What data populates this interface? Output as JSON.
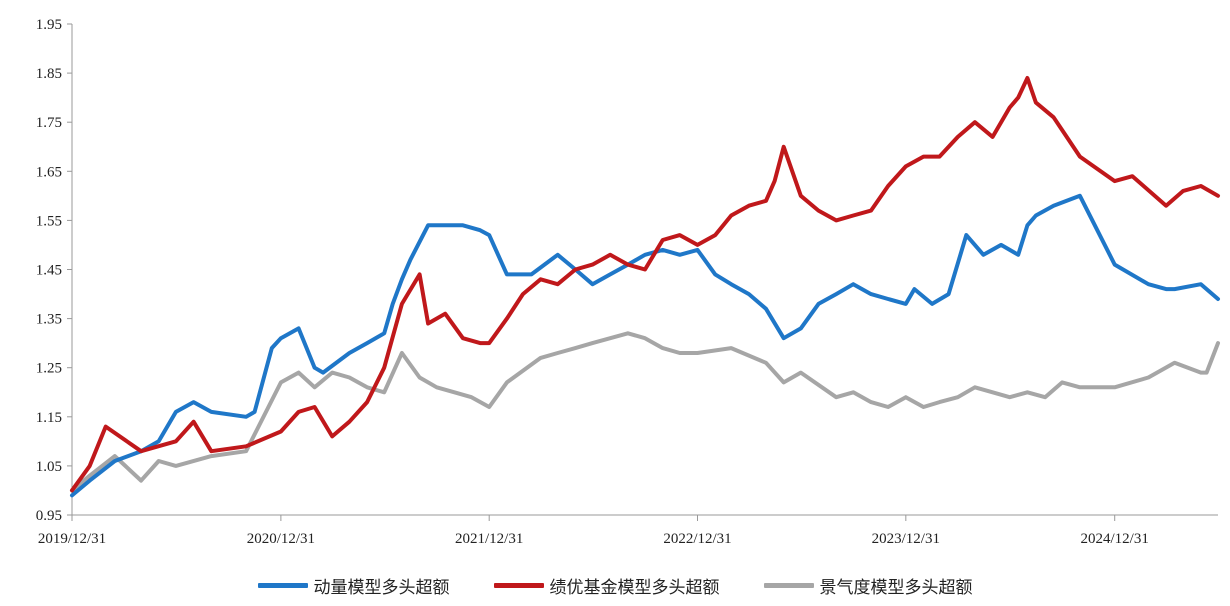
{
  "chart_data": {
    "type": "line",
    "title": "",
    "xlabel": "",
    "ylabel": "",
    "x_start": "2019/12/31",
    "x_end": "2025/06/30",
    "ylim": [
      0.95,
      1.95
    ],
    "y_ticks": [
      "0.95",
      "1.05",
      "1.15",
      "1.25",
      "1.35",
      "1.45",
      "1.55",
      "1.65",
      "1.75",
      "1.85",
      "1.95"
    ],
    "x_ticks": [
      "2019/12/31",
      "2020/12/31",
      "2021/12/31",
      "2022/12/31",
      "2023/12/31",
      "2024/12/31"
    ],
    "grid": false,
    "legend_position": "bottom",
    "series": [
      {
        "name": "动量模型多头超额",
        "color": "#1f77c8",
        "x": [
          "2019/12/31",
          "2020/01/31",
          "2020/03/15",
          "2020/04/30",
          "2020/05/31",
          "2020/06/30",
          "2020/07/31",
          "2020/08/31",
          "2020/10/31",
          "2020/11/15",
          "2020/12/15",
          "2020/12/31",
          "2021/01/31",
          "2021/02/28",
          "2021/03/15",
          "2021/04/30",
          "2021/05/31",
          "2021/06/30",
          "2021/07/15",
          "2021/07/31",
          "2021/08/15",
          "2021/09/15",
          "2021/10/15",
          "2021/11/15",
          "2021/12/15",
          "2021/12/31",
          "2022/01/31",
          "2022/03/15",
          "2022/04/30",
          "2022/05/31",
          "2022/06/30",
          "2022/07/31",
          "2022/08/31",
          "2022/09/30",
          "2022/10/31",
          "2022/11/30",
          "2022/12/31",
          "2023/01/31",
          "2023/02/28",
          "2023/03/31",
          "2023/04/30",
          "2023/05/31",
          "2023/06/30",
          "2023/07/31",
          "2023/08/31",
          "2023/09/30",
          "2023/10/31",
          "2023/11/30",
          "2023/12/31",
          "2024/01/15",
          "2024/02/15",
          "2024/03/15",
          "2024/04/15",
          "2024/05/15",
          "2024/06/15",
          "2024/07/15",
          "2024/07/31",
          "2024/08/15",
          "2024/09/15",
          "2024/10/31",
          "2024/12/31",
          "2025/02/28",
          "2025/03/31",
          "2025/04/15",
          "2025/05/31",
          "2025/06/30"
        ],
        "values": [
          0.99,
          1.02,
          1.06,
          1.08,
          1.1,
          1.16,
          1.18,
          1.16,
          1.15,
          1.16,
          1.29,
          1.31,
          1.33,
          1.25,
          1.24,
          1.28,
          1.3,
          1.32,
          1.38,
          1.43,
          1.47,
          1.54,
          1.54,
          1.54,
          1.53,
          1.52,
          1.44,
          1.44,
          1.48,
          1.45,
          1.42,
          1.44,
          1.46,
          1.48,
          1.49,
          1.48,
          1.49,
          1.44,
          1.42,
          1.4,
          1.37,
          1.31,
          1.33,
          1.38,
          1.4,
          1.42,
          1.4,
          1.39,
          1.38,
          1.41,
          1.38,
          1.4,
          1.52,
          1.48,
          1.5,
          1.48,
          1.54,
          1.56,
          1.58,
          1.6,
          1.46,
          1.42,
          1.41,
          1.41,
          1.42,
          1.39
        ]
      },
      {
        "name": "绩优基金模型多头超额",
        "color": "#c0181b",
        "x": [
          "2019/12/31",
          "2020/01/31",
          "2020/02/28",
          "2020/04/30",
          "2020/06/30",
          "2020/07/31",
          "2020/08/31",
          "2020/10/31",
          "2020/12/31",
          "2021/01/31",
          "2021/02/28",
          "2021/03/31",
          "2021/04/30",
          "2021/05/31",
          "2021/06/30",
          "2021/07/31",
          "2021/08/31",
          "2021/09/15",
          "2021/10/15",
          "2021/11/15",
          "2021/12/15",
          "2021/12/31",
          "2022/01/31",
          "2022/02/28",
          "2022/03/31",
          "2022/04/30",
          "2022/05/31",
          "2022/06/30",
          "2022/07/31",
          "2022/08/31",
          "2022/09/30",
          "2022/10/31",
          "2022/11/30",
          "2022/12/31",
          "2023/01/31",
          "2023/02/28",
          "2023/03/31",
          "2023/04/30",
          "2023/05/15",
          "2023/05/31",
          "2023/06/30",
          "2023/07/31",
          "2023/08/31",
          "2023/09/30",
          "2023/10/31",
          "2023/11/30",
          "2023/12/31",
          "2024/01/31",
          "2024/02/28",
          "2024/03/31",
          "2024/04/30",
          "2024/05/31",
          "2024/06/30",
          "2024/07/15",
          "2024/07/31",
          "2024/08/15",
          "2024/09/15",
          "2024/10/31",
          "2024/12/31",
          "2025/01/31",
          "2025/03/31",
          "2025/04/30",
          "2025/05/31",
          "2025/06/30"
        ],
        "values": [
          1.0,
          1.05,
          1.13,
          1.08,
          1.1,
          1.14,
          1.08,
          1.09,
          1.12,
          1.16,
          1.17,
          1.11,
          1.14,
          1.18,
          1.25,
          1.38,
          1.44,
          1.34,
          1.36,
          1.31,
          1.3,
          1.3,
          1.35,
          1.4,
          1.43,
          1.42,
          1.45,
          1.46,
          1.48,
          1.46,
          1.45,
          1.51,
          1.52,
          1.5,
          1.52,
          1.56,
          1.58,
          1.59,
          1.63,
          1.7,
          1.6,
          1.57,
          1.55,
          1.56,
          1.57,
          1.62,
          1.66,
          1.68,
          1.68,
          1.72,
          1.75,
          1.72,
          1.78,
          1.8,
          1.84,
          1.79,
          1.76,
          1.68,
          1.63,
          1.64,
          1.58,
          1.61,
          1.62,
          1.6
        ]
      },
      {
        "name": "景气度模型多头超额",
        "color": "#a6a6a6",
        "x": [
          "2019/12/31",
          "2020/01/31",
          "2020/03/15",
          "2020/04/30",
          "2020/05/31",
          "2020/06/30",
          "2020/08/31",
          "2020/10/31",
          "2020/12/31",
          "2021/01/31",
          "2021/02/28",
          "2021/03/31",
          "2021/04/30",
          "2021/05/31",
          "2021/06/30",
          "2021/07/31",
          "2021/08/31",
          "2021/09/30",
          "2021/10/31",
          "2021/11/30",
          "2021/12/31",
          "2022/01/31",
          "2022/03/31",
          "2022/04/30",
          "2022/05/31",
          "2022/06/30",
          "2022/07/31",
          "2022/08/31",
          "2022/09/30",
          "2022/10/31",
          "2022/11/30",
          "2022/12/31",
          "2023/02/28",
          "2023/04/30",
          "2023/05/31",
          "2023/06/30",
          "2023/08/31",
          "2023/09/30",
          "2023/10/31",
          "2023/11/30",
          "2023/12/31",
          "2024/01/31",
          "2024/02/28",
          "2024/03/31",
          "2024/04/30",
          "2024/05/31",
          "2024/06/30",
          "2024/07/31",
          "2024/08/31",
          "2024/09/30",
          "2024/10/31",
          "2024/11/30",
          "2024/12/31",
          "2025/02/28",
          "2025/04/15",
          "2025/05/31",
          "2025/06/10",
          "2025/06/30"
        ],
        "values": [
          1.0,
          1.03,
          1.07,
          1.02,
          1.06,
          1.05,
          1.07,
          1.08,
          1.22,
          1.24,
          1.21,
          1.24,
          1.23,
          1.21,
          1.2,
          1.28,
          1.23,
          1.21,
          1.2,
          1.19,
          1.17,
          1.22,
          1.27,
          1.28,
          1.29,
          1.3,
          1.31,
          1.32,
          1.31,
          1.29,
          1.28,
          1.28,
          1.29,
          1.26,
          1.22,
          1.24,
          1.19,
          1.2,
          1.18,
          1.17,
          1.19,
          1.17,
          1.18,
          1.19,
          1.21,
          1.2,
          1.19,
          1.2,
          1.19,
          1.22,
          1.21,
          1.21,
          1.21,
          1.23,
          1.26,
          1.24,
          1.24,
          1.3
        ]
      }
    ]
  }
}
